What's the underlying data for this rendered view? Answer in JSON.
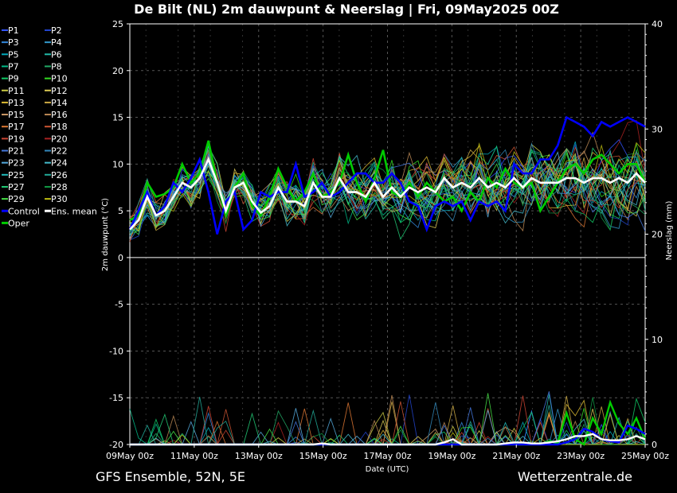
{
  "header": {
    "title": "De Bilt  (NL)  2m dauwpunt & Neerslag | Fri, 09May2025 00Z"
  },
  "footer": {
    "left": "GFS Ensemble, 52N, 5E",
    "right": "Wetterzentrale.de"
  },
  "colors": {
    "background": "#000000",
    "control": "#0000ff",
    "ens_mean": "#ffffff",
    "oper": "#00cc00"
  },
  "chart_data": {
    "type": "line",
    "title": "De Bilt  (NL)  2m dauwpunt & Neerslag | Fri, 09May2025 00Z",
    "xlabel": "Date (UTC)",
    "ylabel": "2m dauwpunt (°C)",
    "y2label": "Neerslag (mm)",
    "xlim": [
      0,
      16
    ],
    "x_ticks": [
      {
        "day": 0,
        "label": "09May 00z"
      },
      {
        "day": 2,
        "label": "11May 00z"
      },
      {
        "day": 4,
        "label": "13May 00z"
      },
      {
        "day": 6,
        "label": "15May 00z"
      },
      {
        "day": 8,
        "label": "17May 00z"
      },
      {
        "day": 10,
        "label": "19May 00z"
      },
      {
        "day": 12,
        "label": "21May 00z"
      },
      {
        "day": 14,
        "label": "23May 00z"
      },
      {
        "day": 16,
        "label": "25May 00z"
      }
    ],
    "y_left": {
      "min": -20,
      "max": 25,
      "ticks": [
        -20,
        -15,
        -10,
        -5,
        0,
        5,
        10,
        15,
        20,
        25
      ]
    },
    "y_right": {
      "min": 0,
      "max": 40,
      "ticks": [
        0,
        10,
        20,
        30,
        40
      ]
    },
    "grid": true,
    "legend": {
      "placement": "left",
      "entries": [
        {
          "name": "P1",
          "color": "#3355ff"
        },
        {
          "name": "P2",
          "color": "#2244cc"
        },
        {
          "name": "P3",
          "color": "#3388dd"
        },
        {
          "name": "P4",
          "color": "#3399cc"
        },
        {
          "name": "P5",
          "color": "#00aabb"
        },
        {
          "name": "P6",
          "color": "#22bbaa"
        },
        {
          "name": "P7",
          "color": "#00bb88"
        },
        {
          "name": "P8",
          "color": "#22aa66"
        },
        {
          "name": "P9",
          "color": "#11cc66"
        },
        {
          "name": "P10",
          "color": "#33dd22"
        },
        {
          "name": "P11",
          "color": "#cccc44"
        },
        {
          "name": "P12",
          "color": "#ddcc55"
        },
        {
          "name": "P13",
          "color": "#ddbb33"
        },
        {
          "name": "P14",
          "color": "#ccaa44"
        },
        {
          "name": "P15",
          "color": "#cc9966"
        },
        {
          "name": "P16",
          "color": "#bb8855"
        },
        {
          "name": "P17",
          "color": "#dd7733"
        },
        {
          "name": "P18",
          "color": "#cc5533"
        },
        {
          "name": "P19",
          "color": "#cc4433"
        },
        {
          "name": "P20",
          "color": "#aa2222"
        },
        {
          "name": "P21",
          "color": "#4477dd"
        },
        {
          "name": "P22",
          "color": "#3388bb"
        },
        {
          "name": "P23",
          "color": "#55aadd"
        },
        {
          "name": "P24",
          "color": "#44bbcc"
        },
        {
          "name": "P25",
          "color": "#22bbbb"
        },
        {
          "name": "P26",
          "color": "#22aa99"
        },
        {
          "name": "P27",
          "color": "#22cc77"
        },
        {
          "name": "P28",
          "color": "#119944"
        },
        {
          "name": "P29",
          "color": "#44dd44"
        },
        {
          "name": "P30",
          "color": "#bbbb11"
        },
        {
          "name": "Control",
          "color": "#0000ff"
        },
        {
          "name": "Ens. mean",
          "color": "#ffffff"
        },
        {
          "name": "Oper",
          "color": "#00cc00"
        }
      ]
    },
    "series": [
      {
        "name": "Control",
        "dewpoint": [
          3,
          5,
          7,
          4.5,
          5.5,
          8,
          7,
          8.5,
          10.5,
          7,
          2.5,
          6,
          7,
          3,
          4,
          7,
          6.5,
          7,
          7,
          10,
          6.5,
          7,
          8,
          6.5,
          7,
          8,
          9,
          9,
          8,
          8,
          9,
          8,
          6,
          5.5,
          3,
          5.5,
          6,
          5.5,
          6,
          4,
          6,
          5.5,
          6,
          5,
          10,
          9,
          9,
          10.5,
          10.5,
          12,
          15,
          14.5,
          14,
          13,
          14.5,
          14,
          14.5,
          15,
          14.5,
          14
        ],
        "precip": [
          0,
          0,
          0,
          0,
          0,
          0,
          0,
          0,
          0,
          0,
          0,
          0,
          0,
          0,
          0,
          0,
          0,
          0,
          0,
          0,
          0,
          0,
          0,
          0,
          0,
          0,
          0,
          0,
          0,
          0,
          0,
          0,
          0,
          0,
          0,
          0,
          0,
          0,
          0,
          0,
          0,
          0,
          0,
          0,
          0,
          0,
          0,
          0,
          0,
          0,
          0.2,
          0.5,
          1.5,
          1.2,
          0.5,
          0.3,
          0.2,
          1.8,
          1.5,
          1.0
        ]
      },
      {
        "name": "Ens. mean",
        "dewpoint": [
          3,
          4,
          6.5,
          4.5,
          5,
          6.5,
          8,
          7.5,
          8.5,
          10.5,
          8,
          5,
          7.5,
          8,
          6,
          4.8,
          5.5,
          7.5,
          6,
          6,
          5.5,
          8,
          6.5,
          6.5,
          8.5,
          7,
          7,
          6.5,
          8,
          6.5,
          7.5,
          6.5,
          7.5,
          7,
          7.5,
          7,
          8.5,
          7.5,
          8,
          7.5,
          8.5,
          7.5,
          8,
          7.5,
          8.5,
          7.5,
          8.5,
          8,
          8,
          8,
          8.5,
          8.5,
          8,
          8.5,
          8.5,
          8,
          8.5,
          8,
          9,
          8
        ],
        "precip": [
          0,
          0,
          0,
          0,
          0,
          0,
          0,
          0,
          0,
          0,
          0,
          0,
          0,
          0,
          0,
          0,
          0,
          0,
          0,
          0,
          0,
          0,
          0.1,
          0,
          0,
          0,
          0,
          0,
          0,
          0,
          0,
          0,
          0,
          0,
          0,
          0,
          0.2,
          0.5,
          0,
          0,
          0,
          0,
          0,
          0.1,
          0.2,
          0.2,
          0.1,
          0.1,
          0.2,
          0.3,
          0.5,
          0.8,
          0.8,
          1.0,
          0.5,
          0.4,
          0.4,
          0.5,
          0.8,
          0.5
        ]
      },
      {
        "name": "Oper",
        "dewpoint": [
          4,
          4.5,
          8,
          6.5,
          6.8,
          7.5,
          10,
          8,
          9,
          12.5,
          8,
          4.5,
          7.5,
          9,
          5.5,
          4.5,
          6.5,
          9.5,
          7.5,
          6,
          7,
          9,
          6.5,
          7,
          8,
          11,
          8,
          6,
          8.5,
          11.5,
          7,
          6.5,
          8,
          6.5,
          8,
          7,
          6,
          6.5,
          5,
          7,
          6,
          8.5,
          7.5,
          9.5,
          8,
          7.5,
          8,
          5,
          6.5,
          8,
          9.5,
          10,
          9,
          10.5,
          11,
          10,
          9,
          10,
          10,
          8
        ],
        "precip": [
          0,
          0,
          0,
          0,
          0,
          0,
          0,
          0,
          0,
          0,
          0,
          0,
          0,
          0,
          0,
          0,
          0,
          0,
          0,
          0,
          0,
          0,
          0,
          0,
          0,
          0,
          0,
          0,
          0,
          0,
          0,
          0,
          0,
          0,
          0,
          0,
          0,
          0,
          0,
          0,
          0,
          0,
          0,
          0,
          0,
          0,
          0,
          0,
          0.3,
          0.2,
          3.0,
          0.5,
          0,
          2.5,
          1.0,
          4.0,
          2.0,
          1.0,
          2.5,
          0.5
        ]
      }
    ]
  }
}
